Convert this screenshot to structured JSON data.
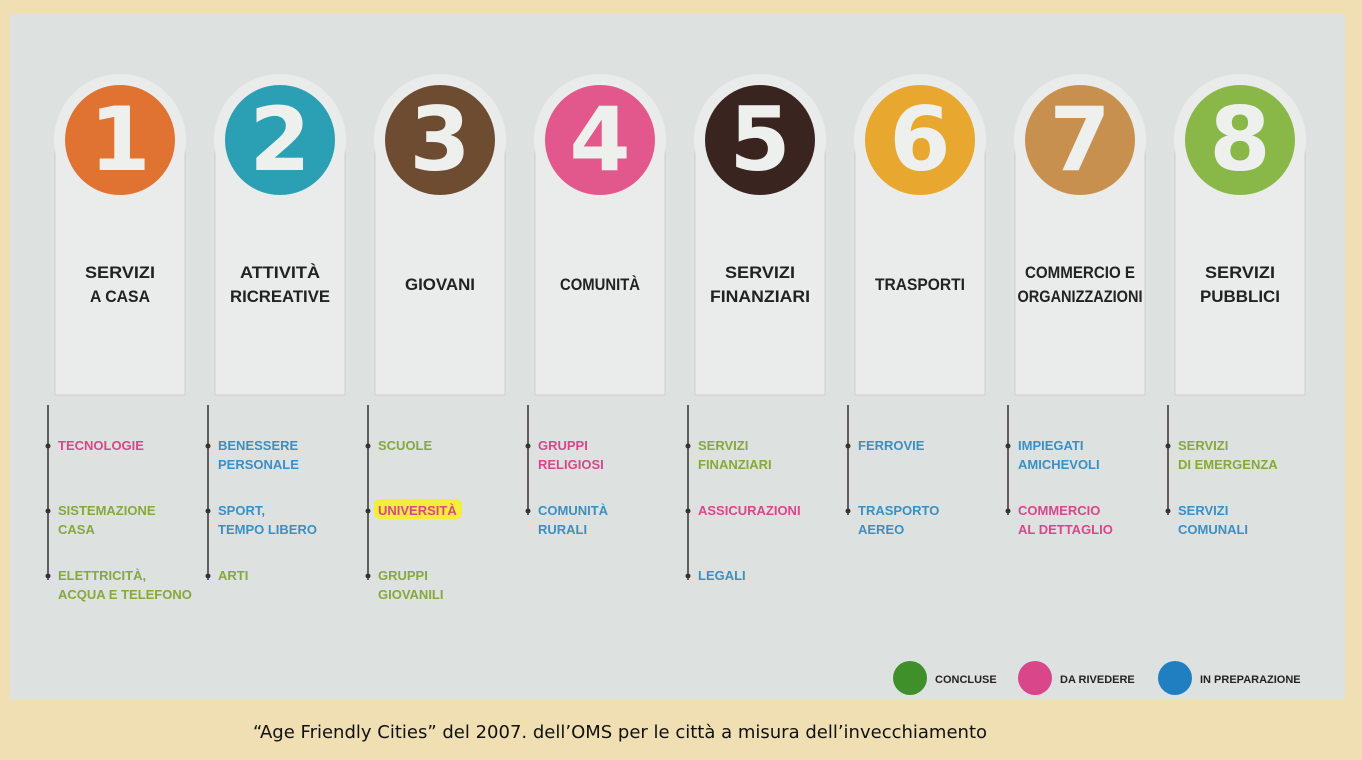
{
  "columns": [
    {
      "number": "1",
      "color": "#e07232",
      "title": [
        "SERVIZI",
        "A CASA"
      ],
      "items": [
        {
          "lines": [
            "TECNOLOGIE"
          ],
          "color": "#d9468a"
        },
        {
          "lines": [
            "SISTEMAZIONE",
            "CASA"
          ],
          "color": "#86a83c"
        },
        {
          "lines": [
            "ELETTRICITÀ,",
            "ACQUA E TELEFONO"
          ],
          "color": "#86a83c"
        }
      ]
    },
    {
      "number": "2",
      "color": "#2b9fb3",
      "title": [
        "ATTIVITÀ",
        "RICREATIVE"
      ],
      "items": [
        {
          "lines": [
            "BENESSERE",
            "PERSONALE"
          ],
          "color": "#3a8fc4"
        },
        {
          "lines": [
            "SPORT,",
            "TEMPO LIBERO"
          ],
          "color": "#3a8fc4"
        },
        {
          "lines": [
            "ARTI"
          ],
          "color": "#86a83c"
        }
      ]
    },
    {
      "number": "3",
      "color": "#6e4c32",
      "title": [
        "GIOVANI"
      ],
      "items": [
        {
          "lines": [
            "SCUOLE"
          ],
          "color": "#86a83c"
        },
        {
          "lines": [
            "UNIVERSITÀ"
          ],
          "color": "#d9468a",
          "highlight": true
        },
        {
          "lines": [
            "GRUPPI",
            "GIOVANILI"
          ],
          "color": "#86a83c"
        }
      ]
    },
    {
      "number": "4",
      "color": "#e2578c",
      "title": [
        "COMUNITÀ"
      ],
      "items": [
        {
          "lines": [
            "GRUPPI",
            "RELIGIOSI"
          ],
          "color": "#d9468a"
        },
        {
          "lines": [
            "COMUNITÀ",
            "RURALI"
          ],
          "color": "#3a8fc4"
        }
      ]
    },
    {
      "number": "5",
      "color": "#3a2420",
      "title": [
        "SERVIZI",
        "FINANZIARI"
      ],
      "items": [
        {
          "lines": [
            "SERVIZI",
            "FINANZIARI"
          ],
          "color": "#86a83c"
        },
        {
          "lines": [
            "ASSICURAZIONI"
          ],
          "color": "#d9468a"
        },
        {
          "lines": [
            "LEGALI"
          ],
          "color": "#3a8fc4"
        }
      ]
    },
    {
      "number": "6",
      "color": "#e8a72e",
      "title": [
        "TRASPORTI"
      ],
      "items": [
        {
          "lines": [
            "FERROVIE"
          ],
          "color": "#3a8fc4"
        },
        {
          "lines": [
            "TRASPORTO",
            "AEREO"
          ],
          "color": "#3a8fc4"
        }
      ]
    },
    {
      "number": "7",
      "color": "#c8904e",
      "title": [
        "COMMERCIO E",
        "ORGANIZZAZIONI"
      ],
      "items": [
        {
          "lines": [
            "IMPIEGATI",
            "AMICHEVOLI"
          ],
          "color": "#3a8fc4"
        },
        {
          "lines": [
            "COMMERCIO",
            "AL DETTAGLIO"
          ],
          "color": "#d9468a"
        }
      ]
    },
    {
      "number": "8",
      "color": "#8ab848",
      "title": [
        "SERVIZI",
        "PUBBLICI"
      ],
      "items": [
        {
          "lines": [
            "SERVIZI",
            "DI EMERGENZA"
          ],
          "color": "#86a83c"
        },
        {
          "lines": [
            "SERVIZI",
            "COMUNALI"
          ],
          "color": "#3a8fc4"
        }
      ]
    }
  ],
  "legend": [
    {
      "label": "CONCLUSE",
      "color": "#3f8f2a"
    },
    {
      "label": "DA RIVEDERE",
      "color": "#d9468a"
    },
    {
      "label": "IN PREPARAZIONE",
      "color": "#1f7fc0"
    }
  ],
  "caption": "“Age Friendly Cities” del 2007.   dell’OMS per le città a misura dell’invecchiamento"
}
